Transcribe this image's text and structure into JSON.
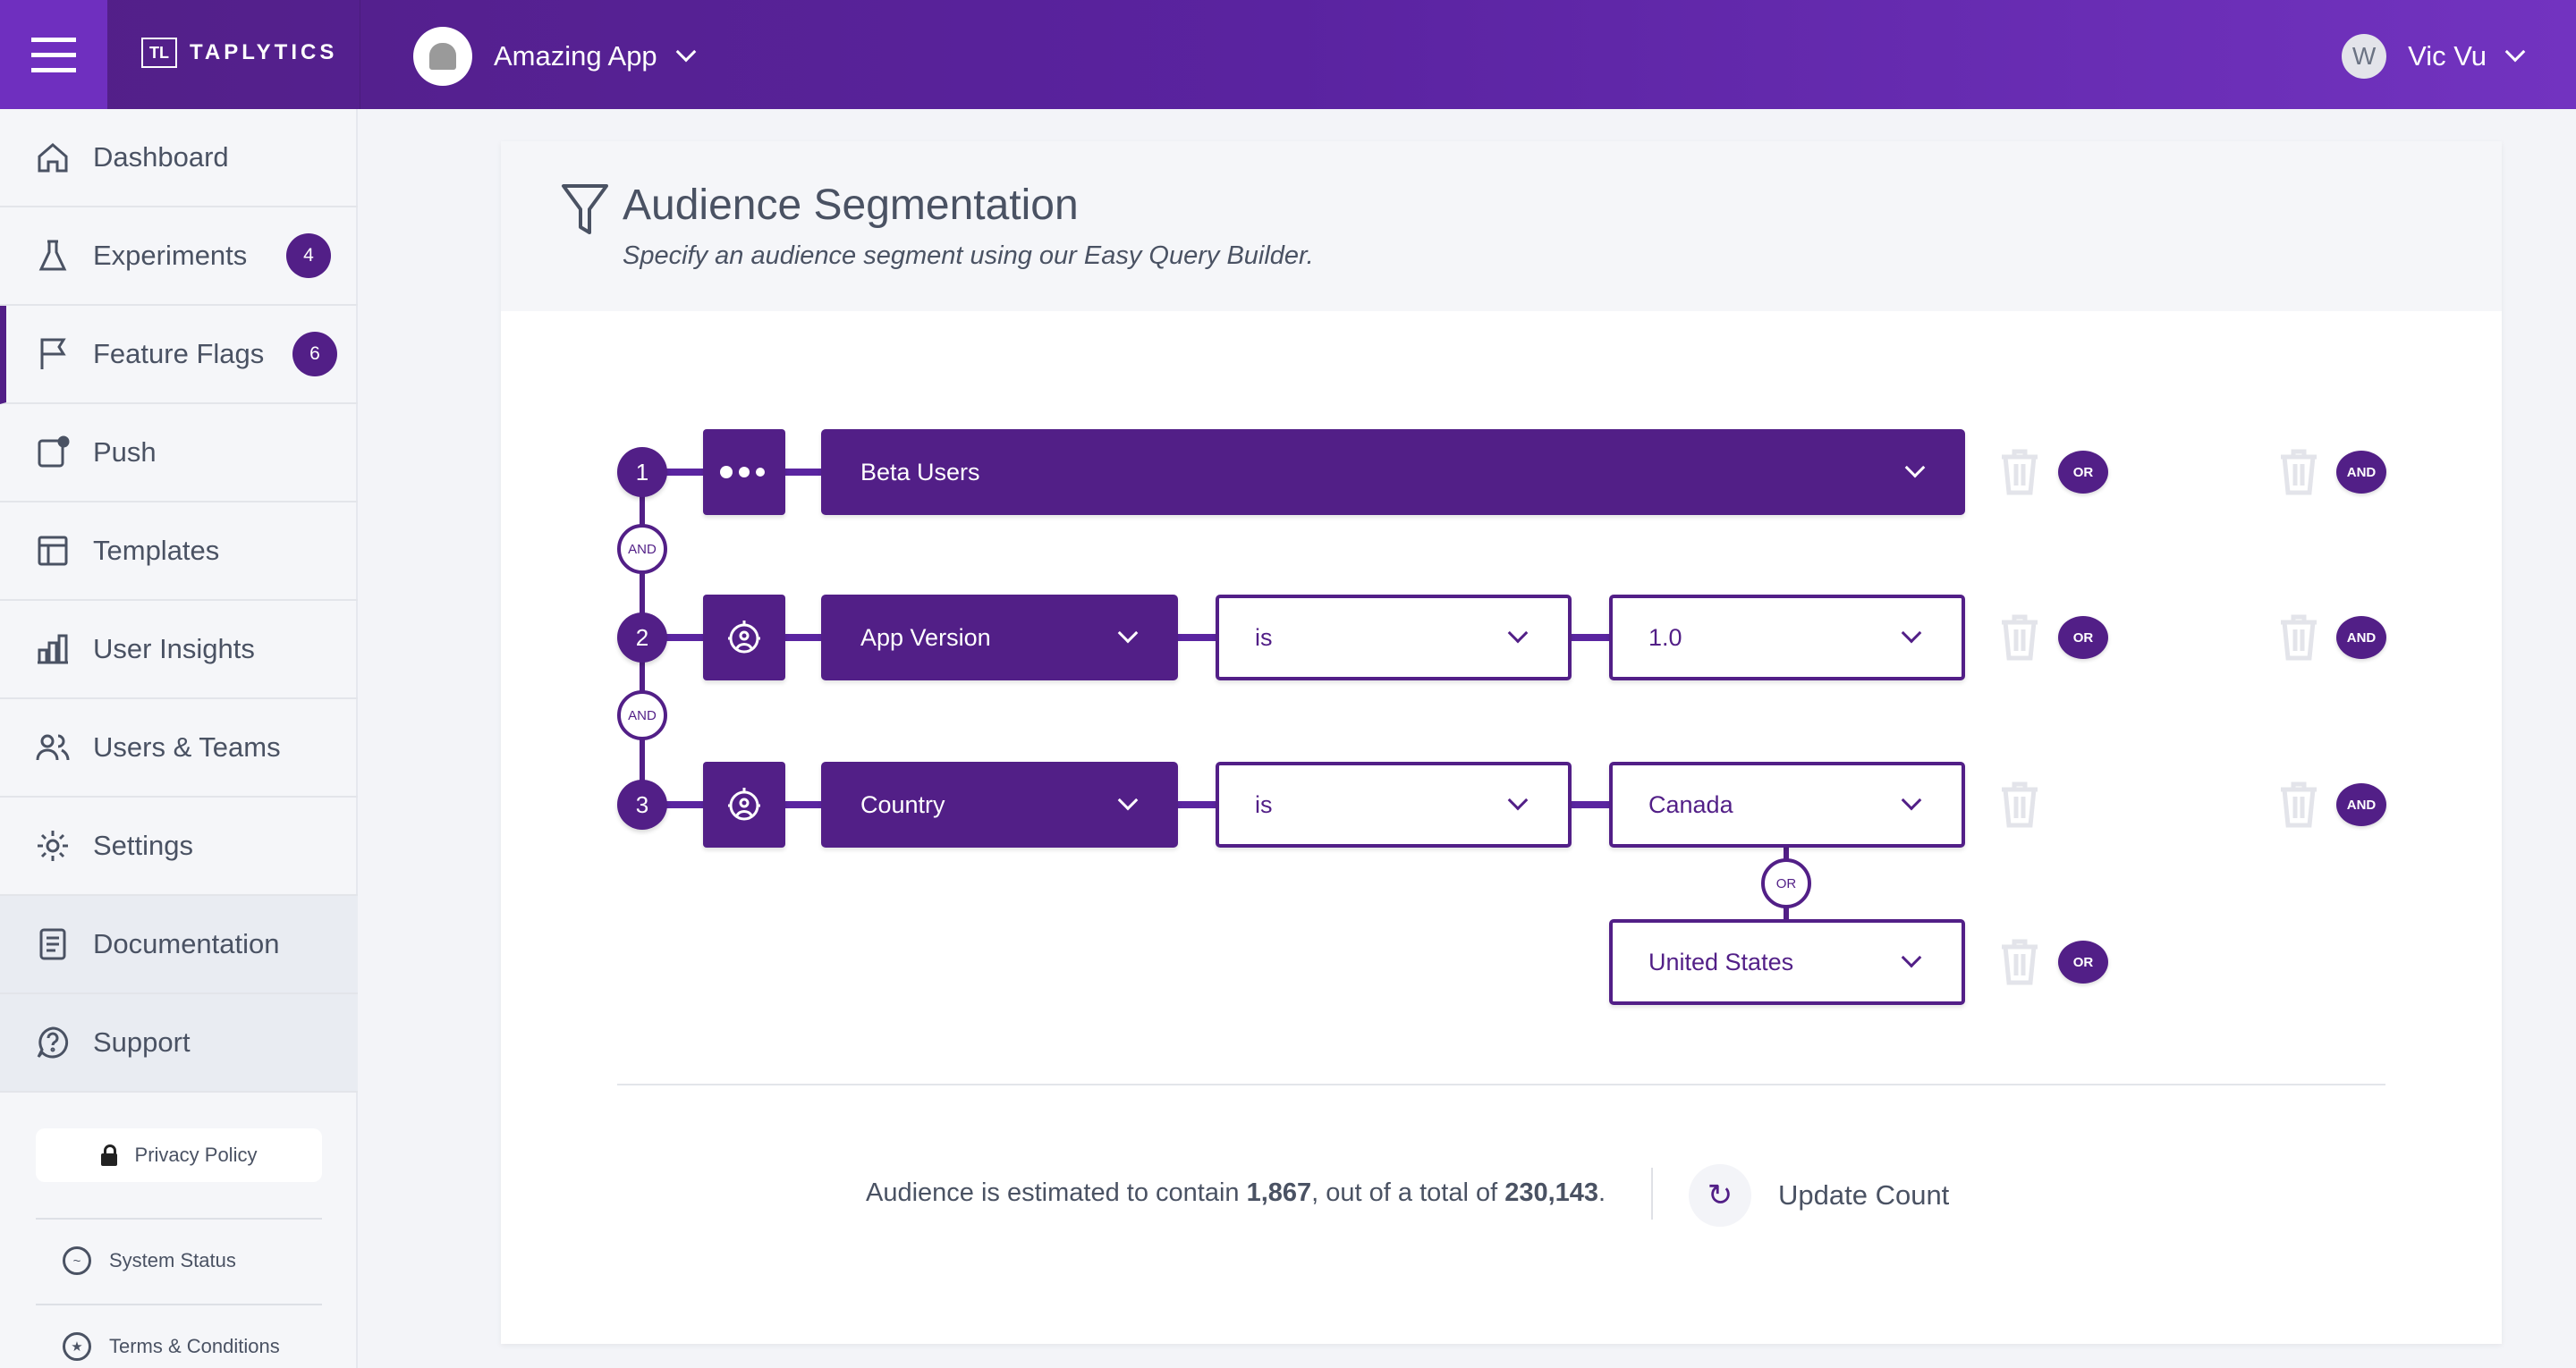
{
  "header": {
    "brand": "TAPLYTICS",
    "brand_mark": "TL",
    "app_name": "Amazing App",
    "user_initial": "W",
    "user_name": "Vic Vu",
    "colors": {
      "primary": "#521f87",
      "accent": "#7233c0"
    }
  },
  "sidebar": {
    "items": [
      {
        "label": "Dashboard",
        "icon": "home-icon"
      },
      {
        "label": "Experiments",
        "icon": "flask-icon",
        "badge": "4"
      },
      {
        "label": "Feature Flags",
        "icon": "flag-icon",
        "badge": "6",
        "active": true
      },
      {
        "label": "Push",
        "icon": "push-icon"
      },
      {
        "label": "Templates",
        "icon": "template-icon"
      },
      {
        "label": "User Insights",
        "icon": "bar-chart-icon"
      },
      {
        "label": "Users & Teams",
        "icon": "users-icon"
      },
      {
        "label": "Settings",
        "icon": "gear-icon"
      },
      {
        "label": "Documentation",
        "icon": "document-icon"
      },
      {
        "label": "Support",
        "icon": "question-icon"
      }
    ],
    "privacy": "Privacy Policy",
    "system_status": "System Status",
    "terms": "Terms & Conditions"
  },
  "main": {
    "title": "Audience Segmentation",
    "subtitle": "Specify an audience segment using our Easy Query Builder.",
    "rows": [
      {
        "num": "1",
        "field": "Beta Users"
      },
      {
        "num": "2",
        "field": "App Version",
        "operator": "is",
        "value": "1.0"
      },
      {
        "num": "3",
        "field": "Country",
        "operator": "is",
        "value": "Canada",
        "or_value": "United States"
      }
    ],
    "and_label": "AND",
    "or_label": "OR",
    "estimate": {
      "prefix": "Audience is estimated to contain ",
      "count": "1,867",
      "middle": ", out of a total of ",
      "total": "230,143",
      "suffix": "."
    },
    "update_label": "Update Count"
  }
}
